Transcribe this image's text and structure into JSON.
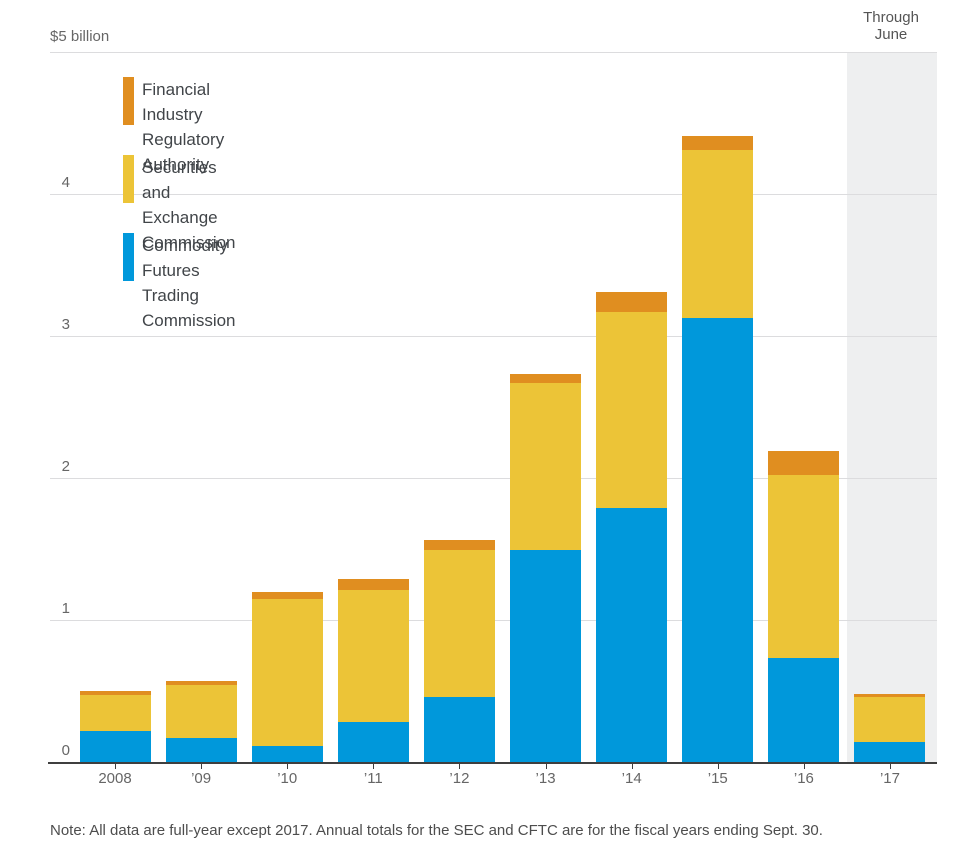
{
  "chart": {
    "y_top_label": "$5 billion",
    "annotation": "Through\nJune",
    "note": "Note: All data are full-year except 2017. Annual totals for the SEC and CFTC are for the fiscal years ending Sept. 30."
  },
  "legend": {
    "items": [
      {
        "series": "finra",
        "label": "Financial Industry\nRegulatory Authority"
      },
      {
        "series": "sec",
        "label": "Securities and\nExchange Commission"
      },
      {
        "series": "cftc",
        "label": "Commodity Futures\nTrading Commission"
      }
    ]
  },
  "colors": {
    "finra": "#e08e20",
    "sec": "#ecc437",
    "cftc": "#0098db",
    "highlight_band": "#eeeff0",
    "gridline": "#dcdcde",
    "axis": "#3f3f3f",
    "tick_text": "#666666",
    "legend_text": "#414549",
    "note_text": "#4d4d4d"
  },
  "chart_data": {
    "type": "bar",
    "stacked": true,
    "title": "",
    "xlabel": "",
    "ylabel": "$5 billion",
    "ylim": [
      0,
      5
    ],
    "yticks": [
      0,
      1,
      2,
      3,
      4
    ],
    "grid": true,
    "legend_position": "upper-left-inside",
    "categories": [
      "2008",
      "’09",
      "’10",
      "’11",
      "’12",
      "’13",
      "’14",
      "’15",
      "’16",
      "’17"
    ],
    "series": [
      {
        "name": "Commodity Futures Trading Commission",
        "key": "cftc",
        "color": "#0098db",
        "values": [
          0.22,
          0.17,
          0.11,
          0.28,
          0.46,
          1.49,
          1.79,
          3.13,
          0.73,
          0.14
        ]
      },
      {
        "name": "Securities and Exchange Commission",
        "key": "sec",
        "color": "#ecc437",
        "values": [
          0.25,
          0.37,
          1.04,
          0.93,
          1.03,
          1.18,
          1.38,
          1.18,
          1.29,
          0.32
        ]
      },
      {
        "name": "Financial Industry Regulatory Authority",
        "key": "finra",
        "color": "#e08e20",
        "values": [
          0.03,
          0.03,
          0.05,
          0.08,
          0.07,
          0.06,
          0.14,
          0.1,
          0.17,
          0.02
        ]
      }
    ],
    "highlight_category": "’17",
    "highlight_label": "Through\nJune"
  }
}
